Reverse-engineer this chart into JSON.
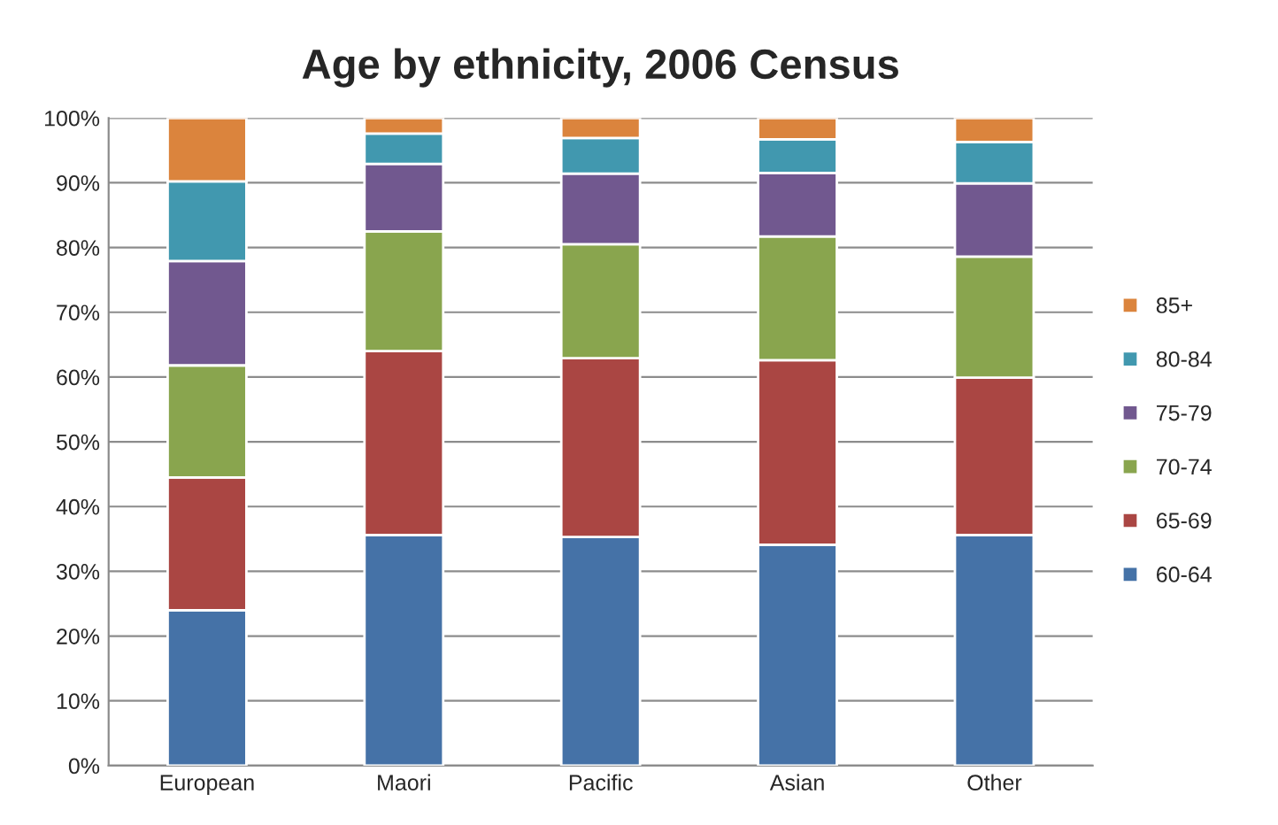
{
  "chart_data": {
    "type": "bar",
    "title": "Age by ethnicity, 2006 Census",
    "stacked": true,
    "categories": [
      "European",
      "Maori",
      "Pacific",
      "Asian",
      "Other"
    ],
    "series": [
      {
        "name": "60-64",
        "color": "#4572a7",
        "values": [
          24.0,
          35.6,
          35.3,
          34.1,
          35.6
        ]
      },
      {
        "name": "65-69",
        "color": "#aa4643",
        "values": [
          20.5,
          28.4,
          27.6,
          28.5,
          24.3
        ]
      },
      {
        "name": "70-74",
        "color": "#89a54e",
        "values": [
          17.3,
          18.5,
          17.6,
          19.1,
          18.7
        ]
      },
      {
        "name": "75-79",
        "color": "#71588f",
        "values": [
          16.1,
          10.4,
          10.9,
          9.8,
          11.3
        ]
      },
      {
        "name": "80-84",
        "color": "#4198af",
        "values": [
          12.3,
          4.7,
          5.5,
          5.2,
          6.4
        ]
      },
      {
        "name": "85+",
        "color": "#db843d",
        "values": [
          9.8,
          2.4,
          3.1,
          3.3,
          3.7
        ]
      }
    ],
    "ylim": [
      0,
      100
    ],
    "yticks": [
      {
        "value": 0,
        "label": "0%"
      },
      {
        "value": 10,
        "label": "10%"
      },
      {
        "value": 20,
        "label": "20%"
      },
      {
        "value": 30,
        "label": "30%"
      },
      {
        "value": 40,
        "label": "40%"
      },
      {
        "value": 50,
        "label": "50%"
      },
      {
        "value": 60,
        "label": "60%"
      },
      {
        "value": 70,
        "label": "70%"
      },
      {
        "value": 80,
        "label": "80%"
      },
      {
        "value": 90,
        "label": "90%"
      },
      {
        "value": 100,
        "label": "100%"
      }
    ],
    "grid": "y",
    "legend": "right"
  }
}
